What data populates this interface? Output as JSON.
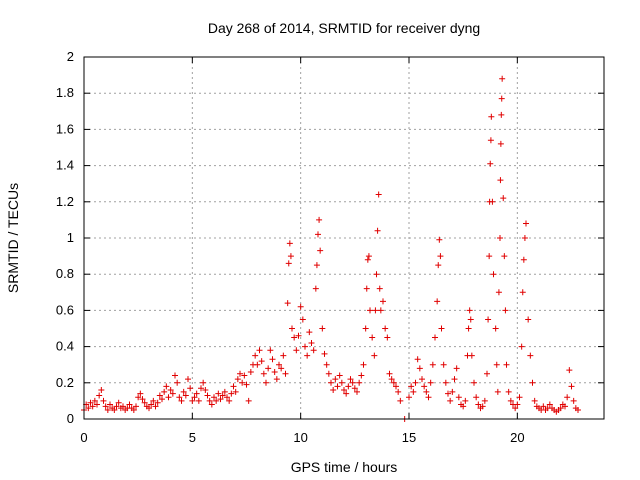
{
  "chart_data": {
    "type": "scatter",
    "title": "Day 268 of 2014, SRMTID for receiver dyng",
    "xlabel": "GPS time / hours",
    "ylabel": "SRMTID / TECUs",
    "xlim": [
      0,
      24
    ],
    "ylim": [
      0,
      2
    ],
    "xticks": [
      0,
      5,
      10,
      15,
      20
    ],
    "xtick_labels": [
      "0",
      "5",
      "10",
      "15",
      "20"
    ],
    "yticks": [
      0,
      0.2,
      0.4,
      0.6,
      0.8,
      1,
      1.2,
      1.4,
      1.6,
      1.8,
      2
    ],
    "ytick_labels": [
      "0",
      "0.2",
      "0.4",
      "0.6",
      "0.8",
      "1",
      "1.2",
      "1.4",
      "1.6",
      "1.8",
      "2"
    ],
    "grid": true,
    "marker": "+",
    "marker_color": "#e00000",
    "series": [
      {
        "name": "SRMTID",
        "points": [
          [
            0.0,
            0.05
          ],
          [
            0.1,
            0.08
          ],
          [
            0.2,
            0.06
          ],
          [
            0.3,
            0.09
          ],
          [
            0.4,
            0.07
          ],
          [
            0.5,
            0.1
          ],
          [
            0.6,
            0.08
          ],
          [
            0.7,
            0.13
          ],
          [
            0.8,
            0.16
          ],
          [
            0.9,
            0.1
          ],
          [
            1.0,
            0.07
          ],
          [
            1.1,
            0.05
          ],
          [
            1.2,
            0.08
          ],
          [
            1.3,
            0.06
          ],
          [
            1.4,
            0.05
          ],
          [
            1.5,
            0.07
          ],
          [
            1.6,
            0.09
          ],
          [
            1.7,
            0.06
          ],
          [
            1.8,
            0.07
          ],
          [
            1.9,
            0.05
          ],
          [
            2.0,
            0.06
          ],
          [
            2.1,
            0.08
          ],
          [
            2.2,
            0.06
          ],
          [
            2.3,
            0.05
          ],
          [
            2.4,
            0.07
          ],
          [
            2.5,
            0.12
          ],
          [
            2.6,
            0.14
          ],
          [
            2.7,
            0.11
          ],
          [
            2.8,
            0.09
          ],
          [
            2.9,
            0.07
          ],
          [
            3.0,
            0.06
          ],
          [
            3.1,
            0.08
          ],
          [
            3.2,
            0.1
          ],
          [
            3.3,
            0.07
          ],
          [
            3.4,
            0.09
          ],
          [
            3.5,
            0.13
          ],
          [
            3.6,
            0.11
          ],
          [
            3.7,
            0.15
          ],
          [
            3.8,
            0.18
          ],
          [
            3.9,
            0.12
          ],
          [
            4.0,
            0.16
          ],
          [
            4.1,
            0.14
          ],
          [
            4.2,
            0.24
          ],
          [
            4.3,
            0.2
          ],
          [
            4.4,
            0.12
          ],
          [
            4.5,
            0.1
          ],
          [
            4.6,
            0.15
          ],
          [
            4.7,
            0.13
          ],
          [
            4.8,
            0.22
          ],
          [
            4.9,
            0.17
          ],
          [
            5.0,
            0.1
          ],
          [
            5.1,
            0.12
          ],
          [
            5.2,
            0.14
          ],
          [
            5.3,
            0.1
          ],
          [
            5.4,
            0.17
          ],
          [
            5.5,
            0.2
          ],
          [
            5.6,
            0.16
          ],
          [
            5.7,
            0.13
          ],
          [
            5.8,
            0.1
          ],
          [
            5.9,
            0.08
          ],
          [
            6.0,
            0.12
          ],
          [
            6.1,
            0.1
          ],
          [
            6.2,
            0.14
          ],
          [
            6.3,
            0.11
          ],
          [
            6.4,
            0.13
          ],
          [
            6.5,
            0.15
          ],
          [
            6.6,
            0.12
          ],
          [
            6.7,
            0.1
          ],
          [
            6.8,
            0.14
          ],
          [
            6.9,
            0.18
          ],
          [
            7.0,
            0.15
          ],
          [
            7.1,
            0.22
          ],
          [
            7.2,
            0.25
          ],
          [
            7.3,
            0.2
          ],
          [
            7.4,
            0.24
          ],
          [
            7.5,
            0.19
          ],
          [
            7.6,
            0.1
          ],
          [
            7.7,
            0.26
          ],
          [
            7.8,
            0.3
          ],
          [
            7.9,
            0.35
          ],
          [
            8.0,
            0.3
          ],
          [
            8.1,
            0.38
          ],
          [
            8.2,
            0.32
          ],
          [
            8.3,
            0.25
          ],
          [
            8.4,
            0.2
          ],
          [
            8.5,
            0.28
          ],
          [
            8.6,
            0.38
          ],
          [
            8.7,
            0.33
          ],
          [
            8.8,
            0.26
          ],
          [
            8.9,
            0.22
          ],
          [
            9.0,
            0.3
          ],
          [
            9.1,
            0.28
          ],
          [
            9.2,
            0.35
          ],
          [
            9.3,
            0.25
          ],
          [
            9.4,
            0.64
          ],
          [
            9.45,
            0.86
          ],
          [
            9.5,
            0.97
          ],
          [
            9.55,
            0.9
          ],
          [
            9.6,
            0.5
          ],
          [
            9.7,
            0.45
          ],
          [
            9.8,
            0.38
          ],
          [
            9.9,
            0.46
          ],
          [
            10.0,
            0.62
          ],
          [
            10.1,
            0.55
          ],
          [
            10.2,
            0.4
          ],
          [
            10.3,
            0.35
          ],
          [
            10.4,
            0.48
          ],
          [
            10.5,
            0.42
          ],
          [
            10.6,
            0.38
          ],
          [
            10.7,
            0.72
          ],
          [
            10.75,
            0.85
          ],
          [
            10.8,
            1.02
          ],
          [
            10.85,
            1.1
          ],
          [
            10.9,
            0.93
          ],
          [
            11.0,
            0.5
          ],
          [
            11.1,
            0.36
          ],
          [
            11.2,
            0.3
          ],
          [
            11.3,
            0.25
          ],
          [
            11.4,
            0.2
          ],
          [
            11.5,
            0.16
          ],
          [
            11.6,
            0.22
          ],
          [
            11.7,
            0.18
          ],
          [
            11.8,
            0.24
          ],
          [
            11.9,
            0.2
          ],
          [
            12.0,
            0.16
          ],
          [
            12.1,
            0.14
          ],
          [
            12.2,
            0.18
          ],
          [
            12.3,
            0.22
          ],
          [
            12.4,
            0.2
          ],
          [
            12.5,
            0.17
          ],
          [
            12.6,
            0.15
          ],
          [
            12.7,
            0.2
          ],
          [
            12.8,
            0.24
          ],
          [
            12.9,
            0.3
          ],
          [
            13.0,
            0.5
          ],
          [
            13.05,
            0.72
          ],
          [
            13.1,
            0.88
          ],
          [
            13.15,
            0.9
          ],
          [
            13.2,
            0.6
          ],
          [
            13.3,
            0.45
          ],
          [
            13.4,
            0.35
          ],
          [
            13.45,
            0.6
          ],
          [
            13.5,
            0.8
          ],
          [
            13.55,
            1.04
          ],
          [
            13.6,
            1.24
          ],
          [
            13.65,
            0.72
          ],
          [
            13.7,
            0.6
          ],
          [
            13.8,
            0.65
          ],
          [
            13.9,
            0.5
          ],
          [
            14.0,
            0.45
          ],
          [
            14.1,
            0.25
          ],
          [
            14.2,
            0.22
          ],
          [
            14.3,
            0.2
          ],
          [
            14.4,
            0.18
          ],
          [
            14.5,
            0.15
          ],
          [
            14.6,
            0.1
          ],
          [
            14.8,
            0.0
          ],
          [
            15.0,
            0.12
          ],
          [
            15.1,
            0.18
          ],
          [
            15.2,
            0.15
          ],
          [
            15.3,
            0.2
          ],
          [
            15.4,
            0.33
          ],
          [
            15.5,
            0.28
          ],
          [
            15.6,
            0.22
          ],
          [
            15.7,
            0.18
          ],
          [
            15.8,
            0.15
          ],
          [
            15.9,
            0.12
          ],
          [
            16.0,
            0.2
          ],
          [
            16.1,
            0.3
          ],
          [
            16.2,
            0.45
          ],
          [
            16.3,
            0.65
          ],
          [
            16.35,
            0.85
          ],
          [
            16.4,
            0.99
          ],
          [
            16.45,
            0.9
          ],
          [
            16.5,
            0.5
          ],
          [
            16.6,
            0.3
          ],
          [
            16.7,
            0.2
          ],
          [
            16.8,
            0.14
          ],
          [
            16.9,
            0.1
          ],
          [
            17.0,
            0.15
          ],
          [
            17.1,
            0.22
          ],
          [
            17.2,
            0.28
          ],
          [
            17.3,
            0.12
          ],
          [
            17.4,
            0.08
          ],
          [
            17.5,
            0.07
          ],
          [
            17.6,
            0.1
          ],
          [
            17.7,
            0.35
          ],
          [
            17.75,
            0.5
          ],
          [
            17.8,
            0.6
          ],
          [
            17.85,
            0.55
          ],
          [
            17.9,
            0.35
          ],
          [
            18.0,
            0.2
          ],
          [
            18.1,
            0.12
          ],
          [
            18.2,
            0.08
          ],
          [
            18.3,
            0.06
          ],
          [
            18.4,
            0.07
          ],
          [
            18.5,
            0.1
          ],
          [
            18.6,
            0.25
          ],
          [
            18.65,
            0.55
          ],
          [
            18.7,
            0.9
          ],
          [
            18.72,
            1.2
          ],
          [
            18.75,
            1.41
          ],
          [
            18.78,
            1.54
          ],
          [
            18.8,
            1.67
          ],
          [
            18.85,
            1.2
          ],
          [
            18.9,
            0.8
          ],
          [
            19.0,
            0.5
          ],
          [
            19.05,
            0.3
          ],
          [
            19.1,
            0.15
          ],
          [
            19.15,
            0.7
          ],
          [
            19.2,
            1.0
          ],
          [
            19.22,
            1.32
          ],
          [
            19.24,
            1.52
          ],
          [
            19.26,
            1.68
          ],
          [
            19.28,
            1.77
          ],
          [
            19.3,
            1.88
          ],
          [
            19.35,
            1.22
          ],
          [
            19.4,
            0.9
          ],
          [
            19.45,
            0.6
          ],
          [
            19.5,
            0.3
          ],
          [
            19.6,
            0.15
          ],
          [
            19.7,
            0.1
          ],
          [
            19.8,
            0.08
          ],
          [
            19.9,
            0.06
          ],
          [
            20.0,
            0.08
          ],
          [
            20.1,
            0.12
          ],
          [
            20.2,
            0.4
          ],
          [
            20.25,
            0.7
          ],
          [
            20.3,
            0.88
          ],
          [
            20.35,
            1.0
          ],
          [
            20.4,
            1.08
          ],
          [
            20.5,
            0.55
          ],
          [
            20.6,
            0.35
          ],
          [
            20.7,
            0.2
          ],
          [
            20.8,
            0.1
          ],
          [
            20.9,
            0.07
          ],
          [
            21.0,
            0.06
          ],
          [
            21.1,
            0.05
          ],
          [
            21.2,
            0.07
          ],
          [
            21.3,
            0.05
          ],
          [
            21.4,
            0.06
          ],
          [
            21.5,
            0.08
          ],
          [
            21.6,
            0.06
          ],
          [
            21.7,
            0.05
          ],
          [
            21.8,
            0.04
          ],
          [
            21.9,
            0.05
          ],
          [
            22.0,
            0.06
          ],
          [
            22.1,
            0.08
          ],
          [
            22.2,
            0.07
          ],
          [
            22.3,
            0.12
          ],
          [
            22.4,
            0.27
          ],
          [
            22.5,
            0.18
          ],
          [
            22.6,
            0.1
          ],
          [
            22.7,
            0.06
          ],
          [
            22.8,
            0.05
          ]
        ]
      }
    ]
  }
}
